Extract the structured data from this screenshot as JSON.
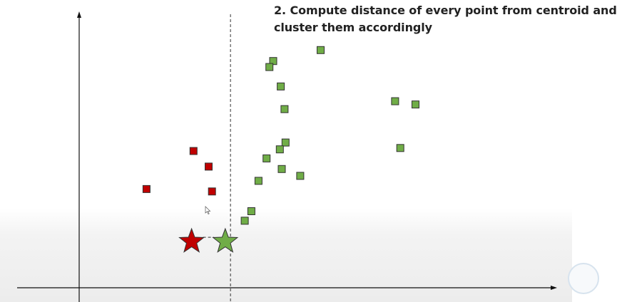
{
  "caption": {
    "line1": "2. Compute distance of every point from centroid and",
    "line2": "cluster them accordingly"
  },
  "colors": {
    "red_cluster": "#c00000",
    "green_cluster": "#70ad47",
    "marker_edge": "#333333",
    "axis": "#111111",
    "divider": "#333333"
  },
  "chart_data": {
    "type": "scatter",
    "title": "2. Compute distance of every point from centroid and cluster them accordingly",
    "xlabel": "",
    "ylabel": "",
    "grid": false,
    "xlim": [
      0,
      100
    ],
    "ylim": [
      0,
      100
    ],
    "divider_x": 31.9,
    "series": [
      {
        "marker": "square",
        "color": "#c00000",
        "points": [
          [
            24.1,
            50.0
          ],
          [
            27.3,
            44.3
          ],
          [
            14.2,
            36.1
          ],
          [
            28.0,
            35.2
          ]
        ]
      },
      {
        "marker": "square",
        "color": "#70ad47",
        "points": [
          [
            39.5,
            47.3
          ],
          [
            40.9,
            82.9
          ],
          [
            40.1,
            80.7
          ],
          [
            43.3,
            65.3
          ],
          [
            42.5,
            73.6
          ],
          [
            43.5,
            53.1
          ],
          [
            42.3,
            50.6
          ],
          [
            42.7,
            43.4
          ],
          [
            46.6,
            40.9
          ],
          [
            67.7,
            51.1
          ],
          [
            66.6,
            68.2
          ],
          [
            70.9,
            67.0
          ],
          [
            50.9,
            86.9
          ],
          [
            37.8,
            39.1
          ],
          [
            36.3,
            28.0
          ],
          [
            34.9,
            24.5
          ]
        ]
      }
    ],
    "centroids": [
      {
        "marker": "star",
        "color": "#c00000",
        "x": 23.7,
        "y": 16.9
      },
      {
        "marker": "star",
        "color": "#70ad47",
        "x": 30.8,
        "y": 16.9
      }
    ]
  }
}
